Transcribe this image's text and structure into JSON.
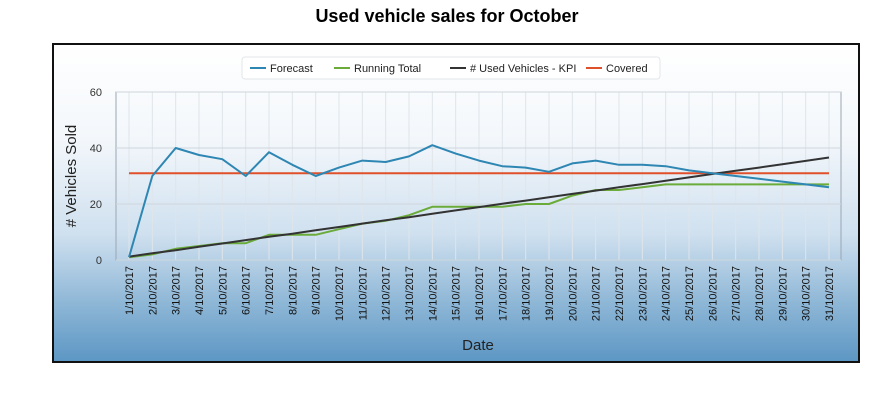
{
  "chart_data": {
    "type": "line",
    "title": "Used vehicle sales for October",
    "xlabel": "Date",
    "ylabel": "# Vehicles Sold",
    "ylim": [
      0,
      60
    ],
    "yticks": [
      0,
      20,
      40,
      60
    ],
    "grid": true,
    "legend_position": "top",
    "categories": [
      "1/10/2017",
      "2/10/2017",
      "3/10/2017",
      "4/10/2017",
      "5/10/2017",
      "6/10/2017",
      "7/10/2017",
      "8/10/2017",
      "9/10/2017",
      "10/10/2017",
      "11/10/2017",
      "12/10/2017",
      "13/10/2017",
      "14/10/2017",
      "15/10/2017",
      "16/10/2017",
      "17/10/2017",
      "18/10/2017",
      "19/10/2017",
      "20/10/2017",
      "21/10/2017",
      "22/10/2017",
      "23/10/2017",
      "24/10/2017",
      "25/10/2017",
      "26/10/2017",
      "27/10/2017",
      "28/10/2017",
      "29/10/2017",
      "30/10/2017",
      "31/10/2017"
    ],
    "series": [
      {
        "name": "Forecast",
        "color": "#2e86b3",
        "values": [
          1,
          30,
          40,
          37.5,
          36,
          30,
          38.5,
          34,
          30,
          33,
          35.5,
          35,
          37,
          41,
          38,
          35.5,
          33.5,
          33,
          31.5,
          34.5,
          35.5,
          34,
          34,
          33.5,
          32,
          31,
          30,
          29,
          28,
          27,
          26
        ]
      },
      {
        "name": "Running Total",
        "color": "#6aab3a",
        "values": [
          1,
          2,
          4,
          5,
          6,
          6,
          9,
          9,
          9,
          11,
          13,
          14,
          16,
          19,
          19,
          19,
          19,
          20,
          20,
          23,
          25,
          25,
          26,
          27,
          27,
          27,
          27,
          27,
          27,
          27,
          27
        ]
      },
      {
        "name": "# Used Vehicles - KPI",
        "color": "#333333",
        "values": [
          1.2,
          2.4,
          3.5,
          4.7,
          5.9,
          7.1,
          8.3,
          9.4,
          10.6,
          11.8,
          13.0,
          14.2,
          15.3,
          16.5,
          17.7,
          18.9,
          20.1,
          21.2,
          22.4,
          23.6,
          24.8,
          26.0,
          27.1,
          28.3,
          29.5,
          30.7,
          31.9,
          33.0,
          34.2,
          35.4,
          36.6
        ]
      },
      {
        "name": "Covered",
        "color": "#e0502a",
        "values": [
          31,
          31,
          31,
          31,
          31,
          31,
          31,
          31,
          31,
          31,
          31,
          31,
          31,
          31,
          31,
          31,
          31,
          31,
          31,
          31,
          31,
          31,
          31,
          31,
          31,
          31,
          31,
          31,
          31,
          31,
          31
        ]
      }
    ]
  }
}
